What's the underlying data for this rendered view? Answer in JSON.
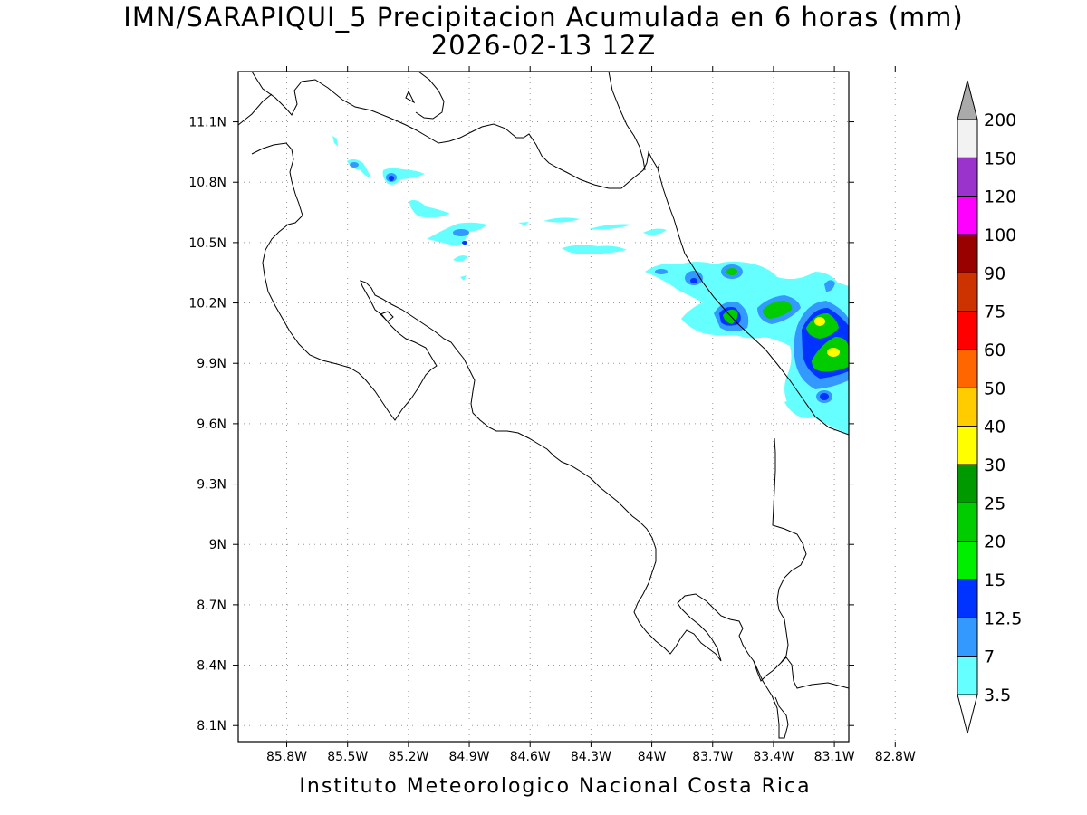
{
  "title_line1": "IMN/SARAPIQUI_5 Precipitacion Acumulada en 6 horas (mm)",
  "title_line2": "2026-02-13 12Z",
  "footer": "Instituto Meteorologico Nacional Costa Rica",
  "map": {
    "lon_range": [
      -86.039,
      -83.029
    ],
    "lat_range": [
      8.02,
      11.35
    ],
    "lon_ticks": [
      "85.8W",
      "85.5W",
      "85.2W",
      "84.9W",
      "84.6W",
      "84.3W",
      "84W",
      "83.7W",
      "83.4W",
      "83.1W",
      "82.8W"
    ],
    "lon_tick_values": [
      -85.8,
      -85.5,
      -85.2,
      -84.9,
      -84.6,
      -84.3,
      -84.0,
      -83.7,
      -83.4,
      -83.1,
      -82.8
    ],
    "lat_ticks": [
      "11.1N",
      "10.8N",
      "10.5N",
      "10.2N",
      "9.9N",
      "9.6N",
      "9.3N",
      "9N",
      "8.7N",
      "8.4N",
      "8.1N"
    ],
    "lat_tick_values": [
      11.1,
      10.8,
      10.5,
      10.2,
      9.9,
      9.6,
      9.3,
      9.0,
      8.7,
      8.4,
      8.1
    ],
    "grid": "dotted"
  },
  "colorbar": {
    "labels": [
      "3.5",
      "7",
      "12.5",
      "15",
      "20",
      "25",
      "30",
      "40",
      "50",
      "60",
      "75",
      "90",
      "100",
      "120",
      "150",
      "200"
    ],
    "colors": [
      "#66ffff",
      "#3399ff",
      "#0033ff",
      "#00ee00",
      "#00cc00",
      "#009900",
      "#ffff00",
      "#ffcc00",
      "#ff6600",
      "#ff0000",
      "#cc3300",
      "#990000",
      "#ff00ff",
      "#9933cc",
      "#f2f2f2",
      "#aaaaaa"
    ],
    "below_color": "#ffffff"
  }
}
